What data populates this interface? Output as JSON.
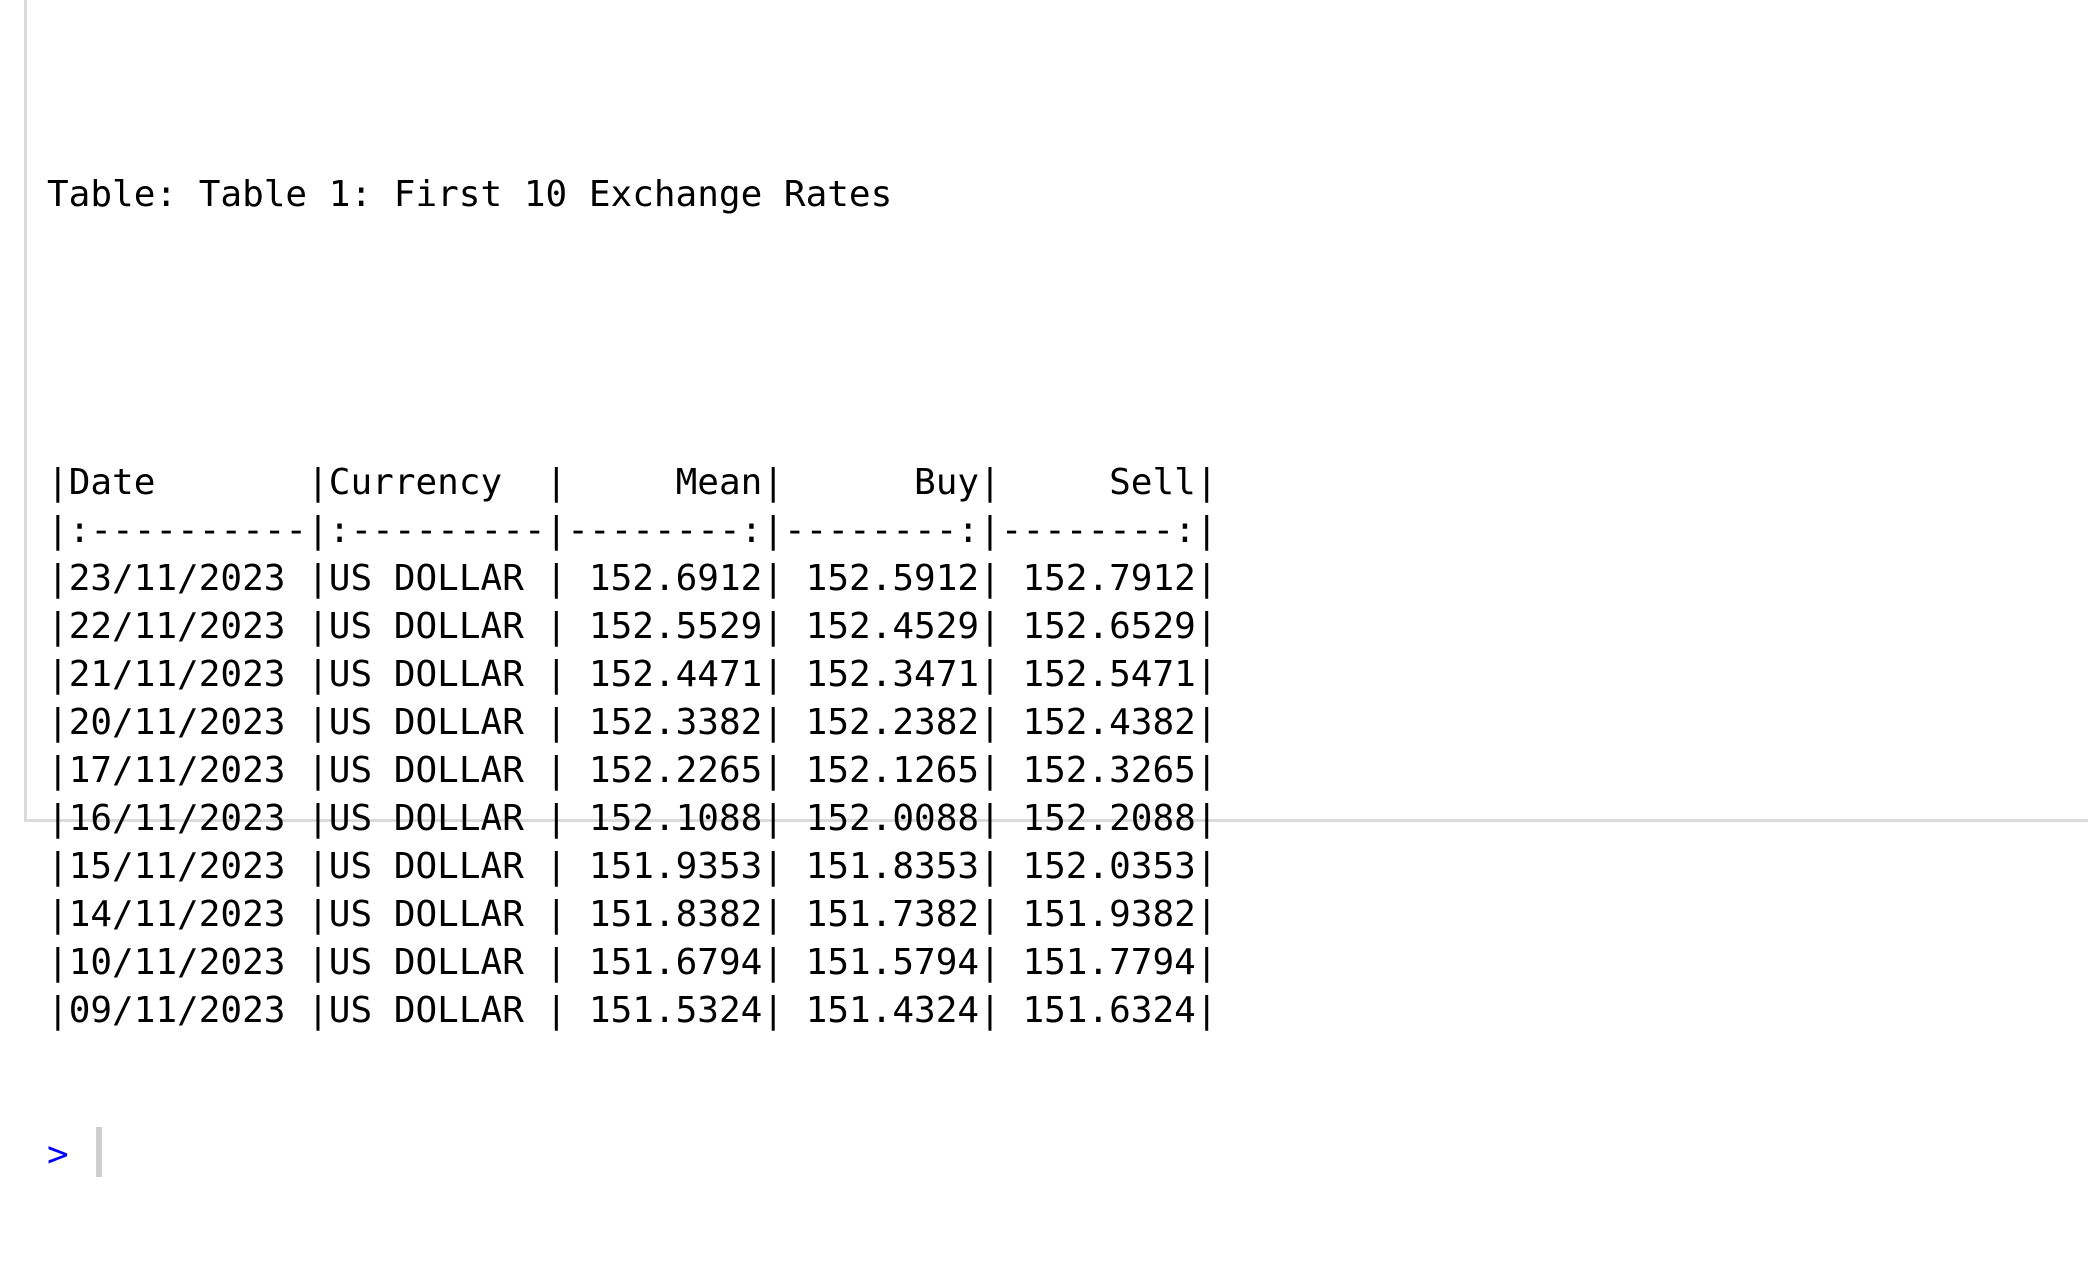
{
  "console": {
    "table_caption": "Table: Table 1: First 10 Exchange Rates",
    "prompt": ">",
    "table": {
      "headers": [
        "Date",
        "Currency",
        "Mean",
        "Buy",
        "Sell"
      ],
      "alignments": [
        "left",
        "left",
        "right",
        "right",
        "right"
      ],
      "col_widths": [
        11,
        10,
        9,
        9,
        9
      ],
      "rows": [
        [
          "23/11/2023",
          "US DOLLAR",
          "152.6912",
          "152.5912",
          "152.7912"
        ],
        [
          "22/11/2023",
          "US DOLLAR",
          "152.5529",
          "152.4529",
          "152.6529"
        ],
        [
          "21/11/2023",
          "US DOLLAR",
          "152.4471",
          "152.3471",
          "152.5471"
        ],
        [
          "20/11/2023",
          "US DOLLAR",
          "152.3382",
          "152.2382",
          "152.4382"
        ],
        [
          "17/11/2023",
          "US DOLLAR",
          "152.2265",
          "152.1265",
          "152.3265"
        ],
        [
          "16/11/2023",
          "US DOLLAR",
          "152.1088",
          "152.0088",
          "152.2088"
        ],
        [
          "15/11/2023",
          "US DOLLAR",
          "151.9353",
          "151.8353",
          "152.0353"
        ],
        [
          "14/11/2023",
          "US DOLLAR",
          "151.8382",
          "151.7382",
          "151.9382"
        ],
        [
          "10/11/2023",
          "US DOLLAR",
          "151.6794",
          "151.5794",
          "151.7794"
        ],
        [
          "09/11/2023",
          "US DOLLAR",
          "151.5324",
          "151.4324",
          "151.6324"
        ]
      ]
    },
    "colors": {
      "text": "#000000",
      "prompt": "#0000ff",
      "border": "#dadada",
      "cursor": "#cfcfcf"
    }
  }
}
